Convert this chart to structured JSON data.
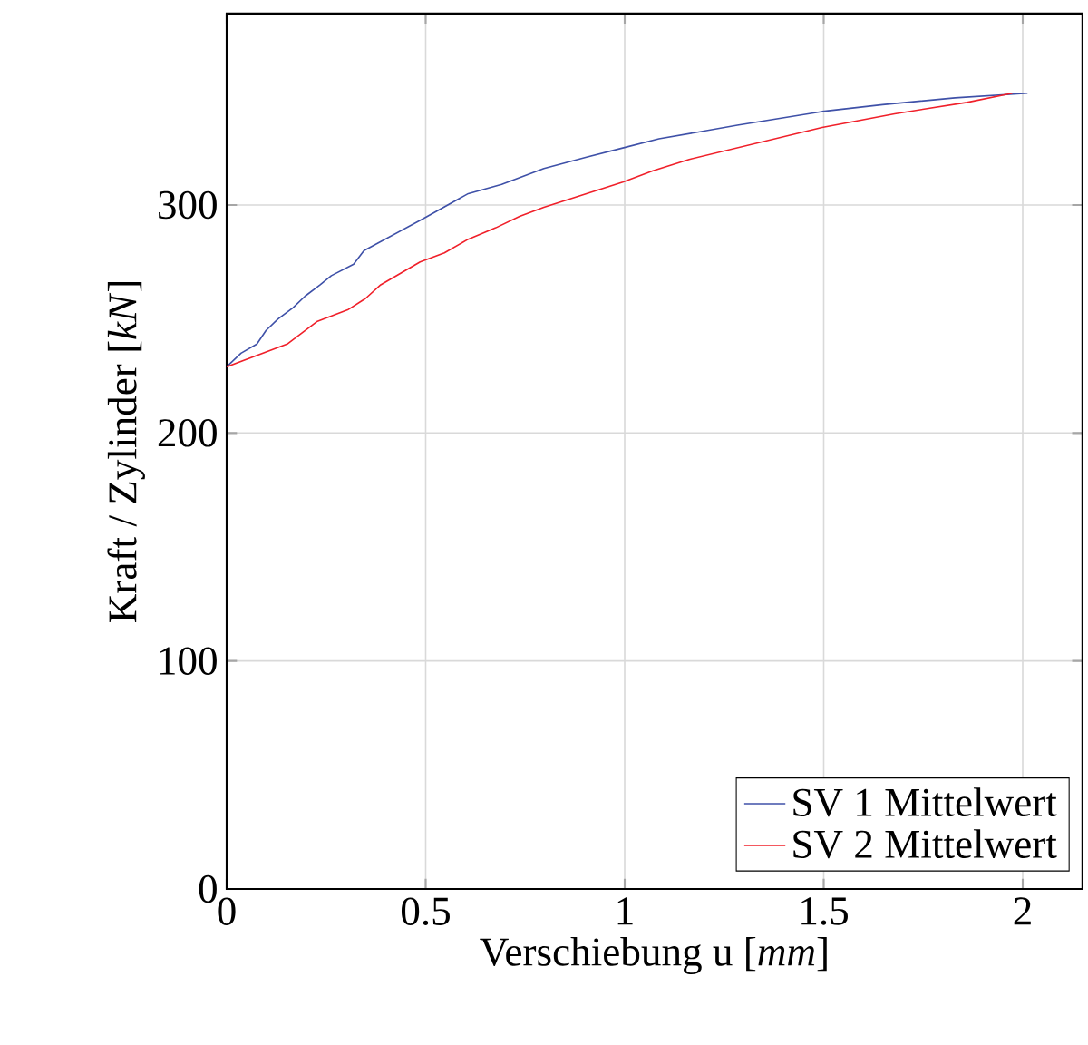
{
  "chart_data": {
    "type": "line",
    "xlabel": "Verschiebung u [*mm*]",
    "ylabel": "Kraft / Zylinder [*kN*]",
    "xlim": [
      0,
      2.15
    ],
    "ylim": [
      0,
      384
    ],
    "xticks": [
      0,
      0.5,
      1,
      1.5,
      2
    ],
    "yticks": [
      0,
      100,
      200,
      300
    ],
    "grid": true,
    "legend": "bottom right",
    "marker": "none",
    "line_style": "solid",
    "series": [
      {
        "name": "SV 1 Mittelwert",
        "color": "#3f51a8",
        "x": [
          0,
          0.036,
          0.076,
          0.099,
          0.129,
          0.167,
          0.197,
          0.235,
          0.263,
          0.319,
          0.345,
          0.494,
          0.607,
          0.691,
          0.797,
          0.904,
          0.995,
          1.086,
          1.283,
          1.496,
          1.648,
          1.83,
          2.012
        ],
        "values": [
          229,
          235,
          239,
          245,
          250,
          255,
          260,
          265,
          269,
          274,
          280,
          294,
          305,
          309,
          316,
          321,
          325,
          329,
          335,
          341,
          344,
          347,
          349
        ]
      },
      {
        "name": "SV 2 Mittelwert",
        "color": "#f0202a",
        "x": [
          0,
          0.152,
          0.228,
          0.304,
          0.349,
          0.387,
          0.486,
          0.547,
          0.607,
          0.676,
          0.736,
          0.797,
          0.904,
          0.995,
          1.071,
          1.162,
          1.329,
          1.496,
          1.678,
          1.86,
          1.974
        ],
        "values": [
          229,
          239,
          249,
          254,
          259,
          265,
          275,
          279,
          285,
          290,
          295,
          299,
          305,
          310,
          315,
          320,
          327,
          334,
          340,
          345,
          349
        ]
      }
    ]
  }
}
